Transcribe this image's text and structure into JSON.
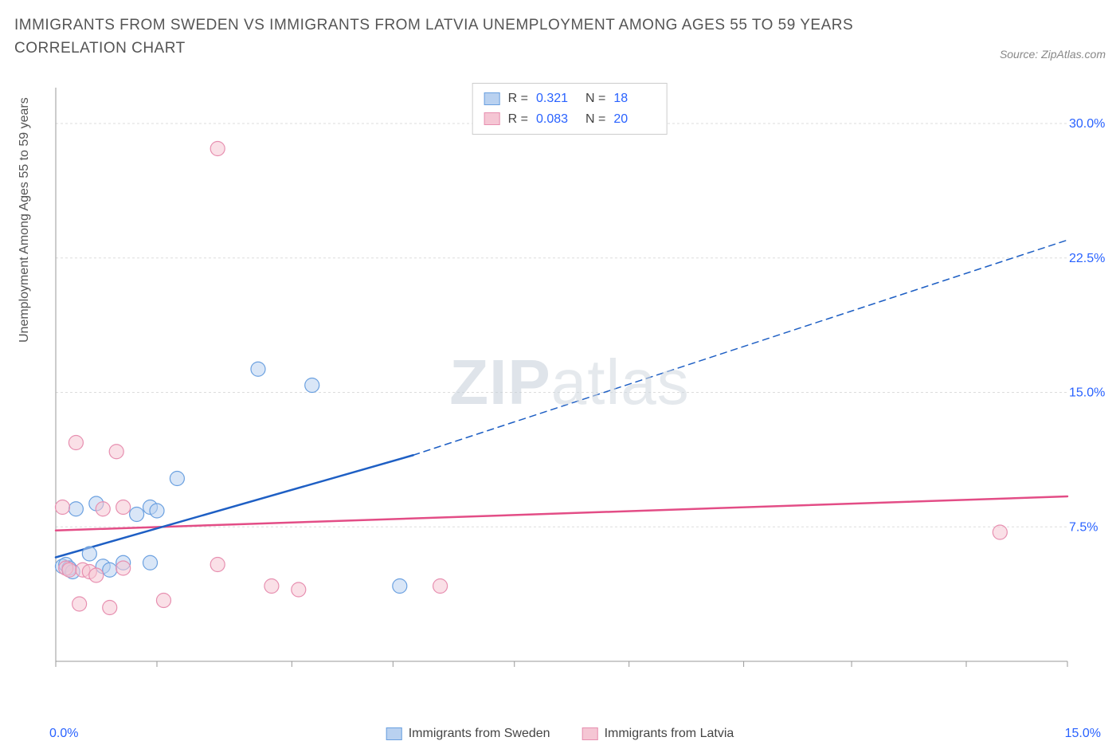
{
  "title": "IMMIGRANTS FROM SWEDEN VS IMMIGRANTS FROM LATVIA UNEMPLOYMENT AMONG AGES 55 TO 59 YEARS CORRELATION CHART",
  "source": "Source: ZipAtlas.com",
  "y_axis_label": "Unemployment Among Ages 55 to 59 years",
  "watermark_bold": "ZIP",
  "watermark_light": "atlas",
  "chart": {
    "type": "scatter",
    "xlim": [
      0,
      15
    ],
    "ylim": [
      0,
      32
    ],
    "x_ticks": [
      0,
      1.5,
      3.5,
      5.0,
      6.8,
      8.5,
      10.2,
      11.8,
      13.5,
      15.0
    ],
    "y_ticks": [
      7.5,
      15.0,
      22.5,
      30.0
    ],
    "y_tick_labels": [
      "7.5%",
      "15.0%",
      "22.5%",
      "30.0%"
    ],
    "x_origin_label": "0.0%",
    "x_end_label": "15.0%",
    "grid_color": "#dddddd",
    "axis_color": "#999999",
    "plot_bg": "#ffffff",
    "y_tick_label_color": "#2962ff",
    "series": [
      {
        "name": "Immigrants from Sweden",
        "color_fill": "#b9d1f0",
        "color_stroke": "#6aa0e0",
        "marker_radius": 9,
        "r_value": "0.321",
        "n_value": "18",
        "trend": {
          "color": "#1e5fc4",
          "width": 2.5,
          "solid_from": [
            0,
            5.8
          ],
          "solid_to": [
            5.3,
            11.5
          ],
          "dashed_from": [
            5.3,
            11.5
          ],
          "dashed_to": [
            15,
            23.5
          ]
        },
        "points": [
          [
            0.1,
            5.3
          ],
          [
            0.15,
            5.4
          ],
          [
            0.2,
            5.2
          ],
          [
            0.25,
            5.0
          ],
          [
            0.3,
            8.5
          ],
          [
            0.5,
            6.0
          ],
          [
            0.6,
            8.8
          ],
          [
            0.7,
            5.3
          ],
          [
            0.8,
            5.1
          ],
          [
            1.0,
            5.5
          ],
          [
            1.2,
            8.2
          ],
          [
            1.4,
            8.6
          ],
          [
            1.5,
            8.4
          ],
          [
            1.8,
            10.2
          ],
          [
            3.0,
            16.3
          ],
          [
            3.8,
            15.4
          ],
          [
            5.1,
            4.2
          ],
          [
            1.4,
            5.5
          ]
        ]
      },
      {
        "name": "Immigrants from Latvia",
        "color_fill": "#f5c6d4",
        "color_stroke": "#e78fb0",
        "marker_radius": 9,
        "r_value": "0.083",
        "n_value": "20",
        "trend": {
          "color": "#e34d86",
          "width": 2.5,
          "solid_from": [
            0,
            7.3
          ],
          "solid_to": [
            15,
            9.2
          ],
          "dashed_from": null,
          "dashed_to": null
        },
        "points": [
          [
            0.1,
            8.6
          ],
          [
            0.15,
            5.2
          ],
          [
            0.2,
            5.1
          ],
          [
            0.3,
            12.2
          ],
          [
            0.35,
            3.2
          ],
          [
            0.4,
            5.1
          ],
          [
            0.5,
            5.0
          ],
          [
            0.6,
            4.8
          ],
          [
            0.7,
            8.5
          ],
          [
            0.8,
            3.0
          ],
          [
            0.9,
            11.7
          ],
          [
            1.0,
            5.2
          ],
          [
            1.0,
            8.6
          ],
          [
            1.6,
            3.4
          ],
          [
            2.4,
            28.6
          ],
          [
            2.4,
            5.4
          ],
          [
            3.2,
            4.2
          ],
          [
            3.6,
            4.0
          ],
          [
            5.7,
            4.2
          ],
          [
            14.0,
            7.2
          ]
        ]
      }
    ]
  },
  "legend_top": {
    "r_label": "R =",
    "n_label": "N ="
  },
  "legend_bottom": [
    {
      "label": "Immigrants from Sweden",
      "fill": "#b9d1f0",
      "stroke": "#6aa0e0"
    },
    {
      "label": "Immigrants from Latvia",
      "fill": "#f5c6d4",
      "stroke": "#e78fb0"
    }
  ]
}
